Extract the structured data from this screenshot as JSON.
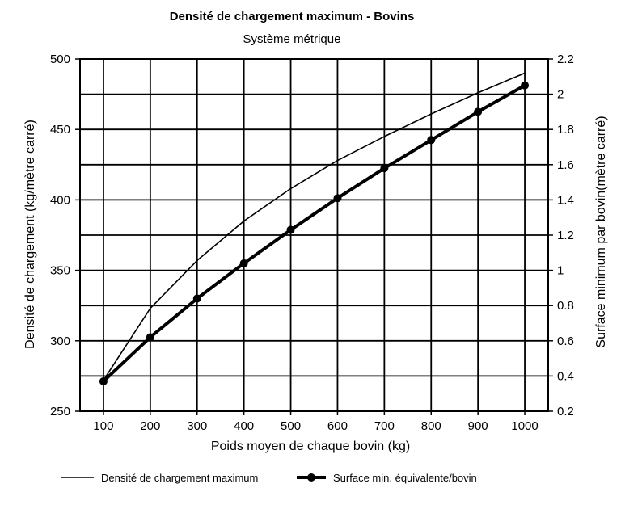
{
  "chart_data": {
    "type": "line",
    "title": "Densité de chargement maximum - Bovins",
    "subtitle": "Système métrique",
    "xlabel": "Poids moyen de chaque bovin (kg)",
    "ylabel_left": "Densité de chargement (kg/mètre carré)",
    "ylabel_right": "Surface minimum par bovin(mètre carré)",
    "x": [
      100,
      200,
      300,
      400,
      500,
      600,
      700,
      800,
      900,
      1000
    ],
    "xlim": [
      50,
      1050
    ],
    "ylim_left": [
      250,
      500
    ],
    "ylim_right": [
      0.2,
      2.2
    ],
    "x_ticks": [
      "100",
      "200",
      "300",
      "400",
      "500",
      "600",
      "700",
      "800",
      "900",
      "1000"
    ],
    "y_left_ticks": [
      "250",
      "300",
      "350",
      "400",
      "450",
      "500"
    ],
    "y_right_ticks": [
      "0.2",
      "0.4",
      "0.6",
      "0.8",
      "1",
      "1.2",
      "1.4",
      "1.6",
      "1.8",
      "2",
      "2.2"
    ],
    "grid": true,
    "legend_position": "bottom",
    "series": [
      {
        "name": "Densité de chargement maximum",
        "axis": "left",
        "markers": false,
        "line": "thin",
        "values": [
          272,
          323,
          357,
          385,
          408,
          428,
          445,
          461,
          476,
          490
        ]
      },
      {
        "name": "Surface min. équivalente/bovin",
        "axis": "right",
        "markers": true,
        "line": "thick",
        "values": [
          0.37,
          0.62,
          0.84,
          1.04,
          1.23,
          1.41,
          1.58,
          1.74,
          1.9,
          2.05
        ]
      }
    ]
  }
}
